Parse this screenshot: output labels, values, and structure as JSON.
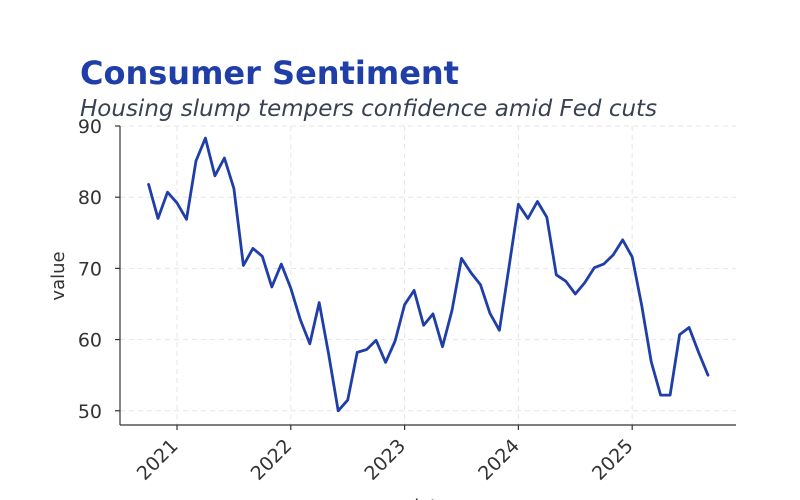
{
  "chart_data": {
    "type": "line",
    "title": "Consumer Sentiment",
    "subtitle": "Housing slump tempers confidence amid Fed cuts",
    "xlabel": "date",
    "ylabel": "value",
    "ylim": [
      48,
      90
    ],
    "yticks": [
      50,
      60,
      70,
      80,
      90
    ],
    "xticks": [
      "2021",
      "2022",
      "2023",
      "2024",
      "2025"
    ],
    "grid": true,
    "color": "#1f3ea8",
    "series": [
      {
        "x": [
          "2020-10",
          "2020-11",
          "2020-12",
          "2021-01",
          "2021-02",
          "2021-03",
          "2021-04",
          "2021-05",
          "2021-06",
          "2021-07",
          "2021-08",
          "2021-09",
          "2021-10",
          "2021-11",
          "2021-12",
          "2022-01",
          "2022-02",
          "2022-03",
          "2022-04",
          "2022-05",
          "2022-06",
          "2022-07",
          "2022-08",
          "2022-09",
          "2022-10",
          "2022-11",
          "2022-12",
          "2023-01",
          "2023-02",
          "2023-03",
          "2023-04",
          "2023-05",
          "2023-06",
          "2023-07",
          "2023-08",
          "2023-09",
          "2023-10",
          "2023-11",
          "2023-12",
          "2024-01",
          "2024-02",
          "2024-03",
          "2024-04",
          "2024-05",
          "2024-06",
          "2024-07",
          "2024-08",
          "2024-09",
          "2024-10",
          "2024-11",
          "2024-12",
          "2025-01",
          "2025-02",
          "2025-03",
          "2025-04",
          "2025-05",
          "2025-06",
          "2025-07",
          "2025-08",
          "2025-09"
        ],
        "values": [
          81.8,
          77.0,
          80.7,
          79.2,
          76.9,
          85.1,
          88.3,
          83.0,
          85.5,
          81.2,
          70.4,
          72.8,
          71.7,
          67.4,
          70.6,
          67.2,
          62.8,
          59.4,
          65.2,
          57.9,
          50.0,
          51.5,
          58.2,
          58.6,
          59.9,
          56.8,
          59.8,
          64.9,
          66.9,
          62.0,
          63.6,
          59.0,
          64.1,
          71.4,
          69.4,
          67.7,
          63.7,
          61.3,
          70.1,
          79.0,
          77.0,
          79.4,
          77.2,
          69.1,
          68.2,
          66.4,
          68.0,
          70.1,
          70.6,
          71.9,
          74.0,
          71.6,
          64.8,
          56.9,
          52.2,
          52.2,
          60.7,
          61.7,
          58.2,
          55.0
        ]
      }
    ]
  }
}
